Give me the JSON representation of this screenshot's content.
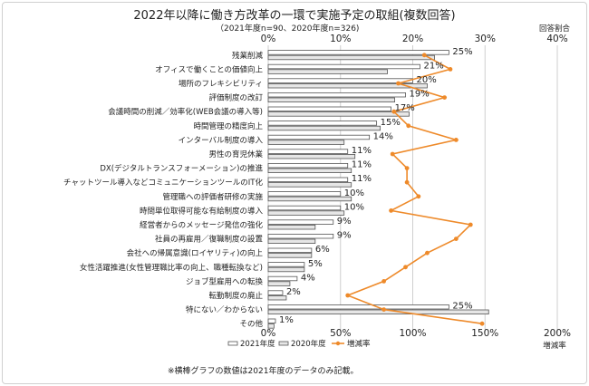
{
  "chart_data": {
    "type": "bar",
    "title": "2022年以降に働き方改革の一環で実施予定の取組(複数回答)",
    "subtitle": "（2021年度n=90、2020年度n=326)",
    "categories": [
      "残業削減",
      "オフィスで働くことの価値向上",
      "場所のフレキシビリティ",
      "評価制度の改訂",
      "会議時間の削減／効率化(WEB会議の導入等)",
      "時間管理の精度向上",
      "インターバル制度の導入",
      "男性の育児休業",
      "DX(デジタルトランスフォーメーション)の推進",
      "チャットツール導入などコミュニケーションツールのIT化",
      "管理職への評価者研修の実施",
      "時間単位取得可能な有給制度の導入",
      "経営者からのメッセージ発信の強化",
      "社員の再雇用／復職制度の設置",
      "会社への帰属意識(ロイヤリティ)の向上",
      "女性活躍推進(女性管理職比率の向上、職種転換など)",
      "ジョブ型雇用への転換",
      "転勤制度の廃止",
      "特にない／わからない",
      "その他"
    ],
    "series": [
      {
        "name": "2021年度",
        "values": [
          25,
          21,
          20,
          19,
          17,
          15,
          14,
          11,
          11,
          11,
          10,
          10,
          9,
          9,
          6,
          5,
          4,
          2,
          25,
          1
        ],
        "data_labels": [
          "25%",
          "21%",
          "20%",
          "19%",
          "17%",
          "15%",
          "14%",
          "11%",
          "11%",
          "11%",
          "10%",
          "10%",
          "9%",
          "9%",
          "6%",
          "5%",
          "4%",
          "2%",
          "25%",
          "1%"
        ]
      },
      {
        "name": "2020年度",
        "values": [
          23.0,
          16.5,
          22.0,
          17.5,
          19.5,
          15.5,
          10.5,
          12.0,
          11.5,
          11.5,
          11.5,
          10.5,
          6.5,
          6.5,
          6.0,
          5.0,
          3.0,
          2.5,
          30.5,
          0.8
        ]
      },
      {
        "name": "増減率",
        "values": [
          108,
          126,
          90,
          122,
          87,
          97,
          130,
          86,
          96,
          96,
          104,
          85,
          140,
          130,
          110,
          95,
          80,
          55,
          80,
          148
        ]
      }
    ],
    "top_axis": {
      "label": "回答割合",
      "ticks": [
        "0%",
        "10%",
        "20%",
        "30%",
        "40%"
      ],
      "range": [
        0,
        40
      ]
    },
    "bottom_axis": {
      "label": "増減率",
      "ticks": [
        "0%",
        "50%",
        "100%",
        "150%",
        "200%"
      ],
      "range": [
        0,
        200
      ]
    },
    "legend_position": "bottom-right",
    "grid": true,
    "footnote": "※横棒グラフの数値は2021年度のデータのみ記載。",
    "colors": {
      "bar2021": "#ffffff",
      "bar2020": "#e6e6e6",
      "barStroke": "#555555",
      "line": "#ee8a2a",
      "grid": "#cfcfcf"
    }
  }
}
